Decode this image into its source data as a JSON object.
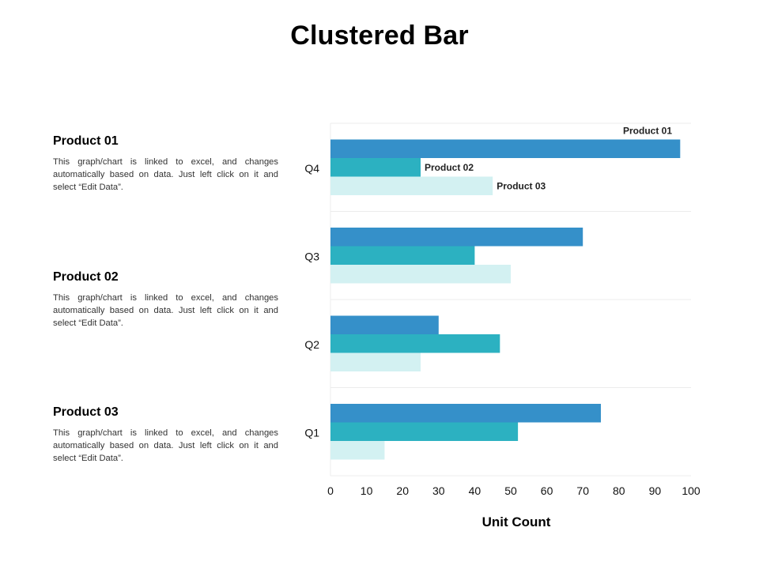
{
  "title": "Clustered Bar",
  "descriptions": [
    {
      "heading": "Product 01",
      "text": "This graph/chart is linked to excel, and changes automatically based on data. Just left click on it and select “Edit Data”."
    },
    {
      "heading": "Product 02",
      "text": "This graph/chart is linked to excel, and changes automatically based on data. Just left click on it and select “Edit Data”."
    },
    {
      "heading": "Product 03",
      "text": "This graph/chart is linked to excel, and changes automatically based on data. Just left click on it and select “Edit Data”."
    }
  ],
  "chart_data": {
    "type": "bar",
    "orientation": "horizontal",
    "categories": [
      "Q1",
      "Q2",
      "Q3",
      "Q4"
    ],
    "series": [
      {
        "name": "Product 01",
        "color": "#3590c9",
        "values": [
          75,
          30,
          70,
          97
        ]
      },
      {
        "name": "Product 02",
        "color": "#2cb1c1",
        "values": [
          52,
          47,
          40,
          25
        ]
      },
      {
        "name": "Product 03",
        "color": "#d3f1f2",
        "values": [
          15,
          25,
          50,
          45
        ]
      }
    ],
    "xlabel": "Unit Count",
    "ylabel": "",
    "xlim": [
      0,
      100
    ],
    "xticks": [
      0,
      10,
      20,
      30,
      40,
      50,
      60,
      70,
      80,
      90,
      100
    ],
    "grid": "horizontal separators",
    "legend": "labels on Q4 bars"
  }
}
